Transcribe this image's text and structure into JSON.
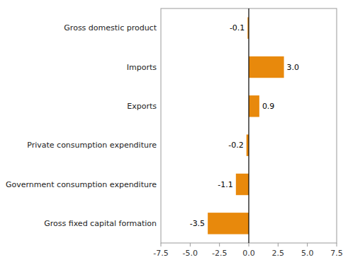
{
  "chart_data": {
    "type": "bar",
    "orientation": "horizontal",
    "categories": [
      "Gross fixed capital formation",
      "Government consumption expenditure",
      "Private consumption expenditure",
      "Exports",
      "Imports",
      "Gross domestic product"
    ],
    "values": [
      -3.5,
      -1.1,
      -0.2,
      0.9,
      3.0,
      -0.1
    ],
    "value_labels": [
      "-3.5",
      "-1.1",
      "-0.2",
      "0.9",
      "3.0",
      "-0.1"
    ],
    "data_labels": true,
    "color": "#E8890C",
    "xlim": [
      -7.5,
      7.5
    ],
    "xticks": [
      -7.5,
      {
        "value": -5.0,
        "label": "-5.0"
      },
      -2.5,
      {
        "value": 0.0,
        "label": "0.0"
      },
      2.5,
      {
        "value": 5.0,
        "label": "5.0"
      },
      7.5
    ],
    "grid": false
  }
}
